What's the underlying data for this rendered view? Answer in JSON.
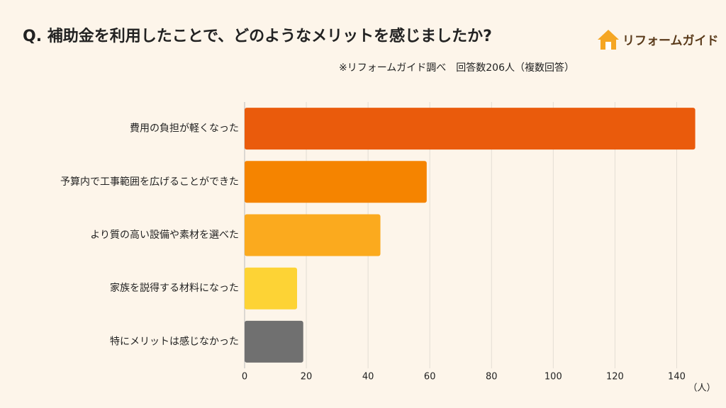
{
  "logo": "リフォームガイド",
  "chart_data": {
    "type": "barh",
    "title": "Q. 補助金を利用したことで、どのようなメリットを感じましたか?",
    "subtitle": "※リフォームガイド調べ　回答数206人（複数回答）",
    "xlabel": "（人）",
    "categories": [
      "費用の負担が軽くなった",
      "予算内で工事範囲を広げることができた",
      "より質の高い設備や素材を選べた",
      "家族を説得する材料になった",
      "特にメリットは感じなかった"
    ],
    "values": [
      146,
      59,
      44,
      17,
      19
    ],
    "colors": [
      "#ea5b0c",
      "#f58400",
      "#fbaa1e",
      "#fdd335",
      "#707070"
    ],
    "xlim": [
      0,
      150
    ],
    "xticks": [
      0,
      20,
      40,
      60,
      80,
      100,
      120,
      140
    ],
    "grid": true
  }
}
